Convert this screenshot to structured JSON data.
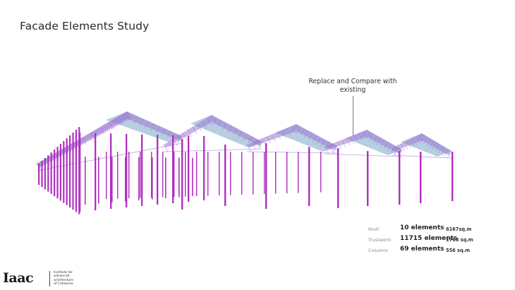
{
  "slide": {
    "title": "Facade Elements Study",
    "annotation": {
      "line1": "Replace and Compare with",
      "line2": "existing"
    }
  },
  "stats": [
    {
      "label": "Roof:",
      "count": "10 elements",
      "area": "6167sq.m"
    },
    {
      "label": "Trusswork:",
      "count": "11715 elements",
      "area": "1768 sq.m"
    },
    {
      "label": "Columns",
      "count": "69 elements",
      "area": "556 sq.m"
    }
  ],
  "logo": {
    "wordmark": "Iaac",
    "tagline": [
      "Institute for",
      "advanced",
      "architecture",
      "of Catalonia"
    ]
  },
  "colors": {
    "roof": "#a9c6da",
    "truss": "#9f7bd6",
    "column": "#b02fc0",
    "text": "#2a2a2a"
  }
}
